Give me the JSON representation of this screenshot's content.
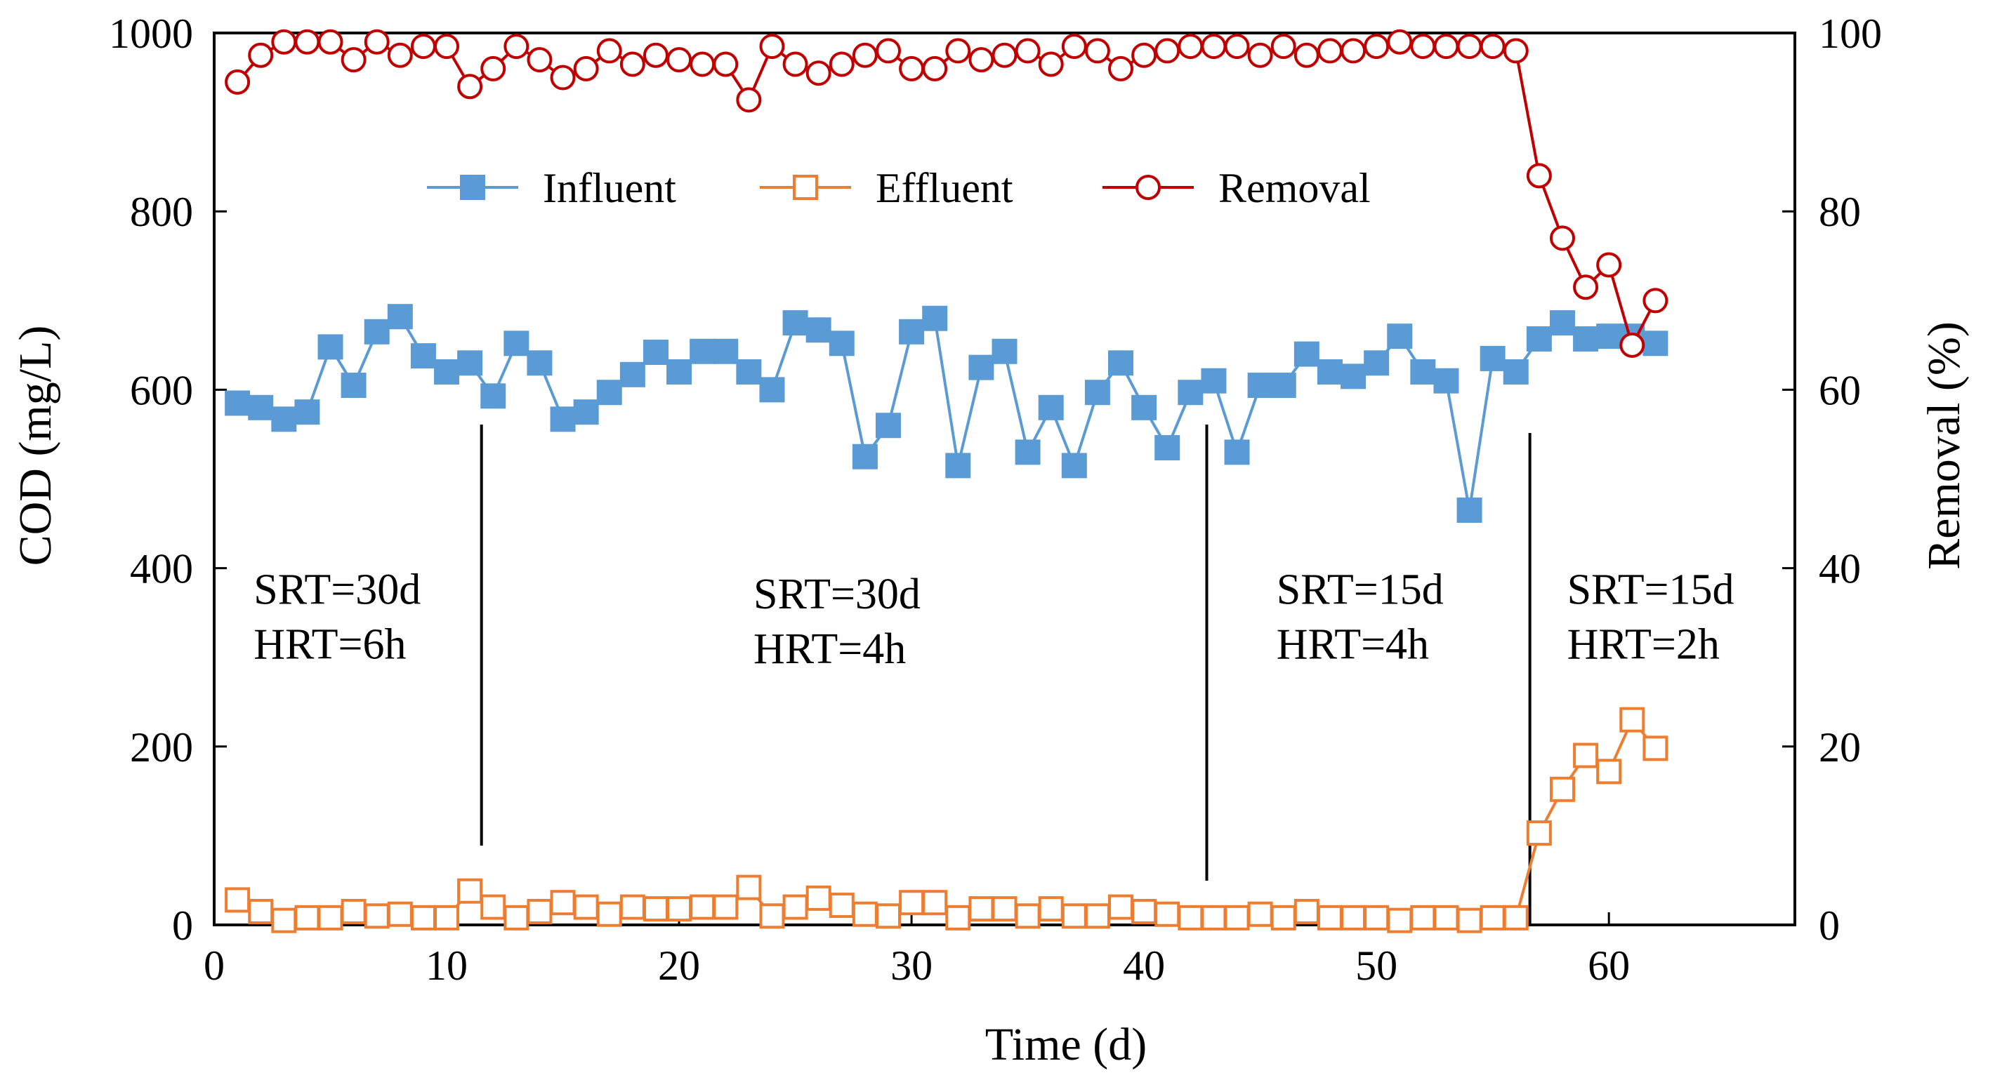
{
  "chart_data": {
    "type": "line",
    "xlabel": "Time (d)",
    "ylabel": "COD (mg/L)",
    "y2label": "Removal (%)",
    "xlim": [
      0,
      68
    ],
    "xticks": [
      0,
      10,
      20,
      30,
      40,
      50,
      60
    ],
    "ylim": [
      0,
      1000
    ],
    "yticks": [
      0,
      200,
      400,
      600,
      800,
      1000
    ],
    "y2lim": [
      0,
      100
    ],
    "y2ticks": [
      0,
      20,
      40,
      60,
      80,
      100
    ],
    "grid": false,
    "legend_position": "top-center",
    "colors": {
      "influent": "#5B9BD5",
      "effluent": "#ED7D31",
      "removal": "#C00000"
    },
    "series": [
      {
        "name": "Influent",
        "axis": "left",
        "marker": "filled-square",
        "x": [
          1,
          2,
          3,
          4,
          5,
          6,
          7,
          8,
          9,
          10,
          11,
          12,
          13,
          14,
          15,
          16,
          17,
          18,
          19,
          20,
          21,
          22,
          23,
          24,
          25,
          26,
          27,
          28,
          29,
          30,
          31,
          32,
          33,
          34,
          35,
          36,
          37,
          38,
          39,
          40,
          41,
          42,
          43,
          44,
          45,
          46,
          47,
          48,
          49,
          50,
          51,
          52,
          53,
          54,
          55,
          56,
          57,
          58,
          59,
          60,
          61,
          62
        ],
        "values": [
          585,
          580,
          567,
          575,
          648,
          605,
          665,
          682,
          638,
          620,
          630,
          593,
          652,
          630,
          567,
          575,
          597,
          617,
          642,
          620,
          643,
          643,
          620,
          600,
          675,
          667,
          652,
          525,
          560,
          665,
          680,
          515,
          625,
          643,
          530,
          580,
          515,
          597,
          630,
          580,
          535,
          597,
          610,
          530,
          605,
          605,
          640,
          620,
          615,
          630,
          660,
          620,
          610,
          465,
          635,
          620,
          657,
          675,
          657,
          660,
          660,
          652
        ]
      },
      {
        "name": "Effluent",
        "axis": "left",
        "marker": "open-square",
        "x": [
          1,
          2,
          3,
          4,
          5,
          6,
          7,
          8,
          9,
          10,
          11,
          12,
          13,
          14,
          15,
          16,
          17,
          18,
          19,
          20,
          21,
          22,
          23,
          24,
          25,
          26,
          27,
          28,
          29,
          30,
          31,
          32,
          33,
          34,
          35,
          36,
          37,
          38,
          39,
          40,
          41,
          42,
          43,
          44,
          45,
          46,
          47,
          48,
          49,
          50,
          51,
          52,
          53,
          54,
          55,
          56,
          57,
          58,
          59,
          60,
          61,
          62
        ],
        "values": [
          28,
          15,
          5,
          8,
          8,
          15,
          10,
          12,
          8,
          8,
          38,
          20,
          8,
          15,
          25,
          20,
          12,
          20,
          18,
          18,
          20,
          20,
          42,
          10,
          20,
          30,
          22,
          12,
          10,
          25,
          25,
          8,
          18,
          18,
          10,
          18,
          10,
          10,
          20,
          15,
          12,
          8,
          8,
          8,
          12,
          8,
          15,
          8,
          8,
          8,
          5,
          8,
          8,
          5,
          8,
          8,
          103,
          152,
          190,
          172,
          230,
          198
        ]
      },
      {
        "name": "Removal",
        "axis": "right",
        "marker": "open-circle",
        "x": [
          1,
          2,
          3,
          4,
          5,
          6,
          7,
          8,
          9,
          10,
          11,
          12,
          13,
          14,
          15,
          16,
          17,
          18,
          19,
          20,
          21,
          22,
          23,
          24,
          25,
          26,
          27,
          28,
          29,
          30,
          31,
          32,
          33,
          34,
          35,
          36,
          37,
          38,
          39,
          40,
          41,
          42,
          43,
          44,
          45,
          46,
          47,
          48,
          49,
          50,
          51,
          52,
          53,
          54,
          55,
          56,
          57,
          58,
          59,
          60,
          61,
          62
        ],
        "values": [
          94.5,
          97.5,
          99,
          99,
          99,
          97,
          99,
          97.5,
          98.5,
          98.5,
          94,
          96,
          98.5,
          97,
          95,
          96,
          98,
          96.5,
          97.5,
          97,
          96.5,
          96.5,
          92.5,
          98.5,
          96.5,
          95.5,
          96.5,
          97.5,
          98,
          96,
          96,
          98,
          97,
          97.5,
          98,
          96.5,
          98.5,
          98,
          96,
          97.5,
          98,
          98.5,
          98.5,
          98.5,
          97.5,
          98.5,
          97.5,
          98,
          98,
          98.5,
          99,
          98.5,
          98.5,
          98.5,
          98.5,
          98,
          84,
          77,
          71.5,
          74,
          65,
          70
        ]
      }
    ],
    "phase_dividers_x": [
      11.5,
      42.7,
      56.6
    ],
    "annotations": [
      {
        "line1": "SRT=30d",
        "line2": "HRT=6h",
        "x": 1.7,
        "y": 360
      },
      {
        "line1": "SRT=30d",
        "line2": "HRT=4h",
        "x": 23.2,
        "y": 355
      },
      {
        "line1": "SRT=15d",
        "line2": "HRT=4h",
        "x": 45.7,
        "y": 360
      },
      {
        "line1": "SRT=15d",
        "line2": "HRT=2h",
        "x": 58.2,
        "y": 360
      }
    ]
  }
}
